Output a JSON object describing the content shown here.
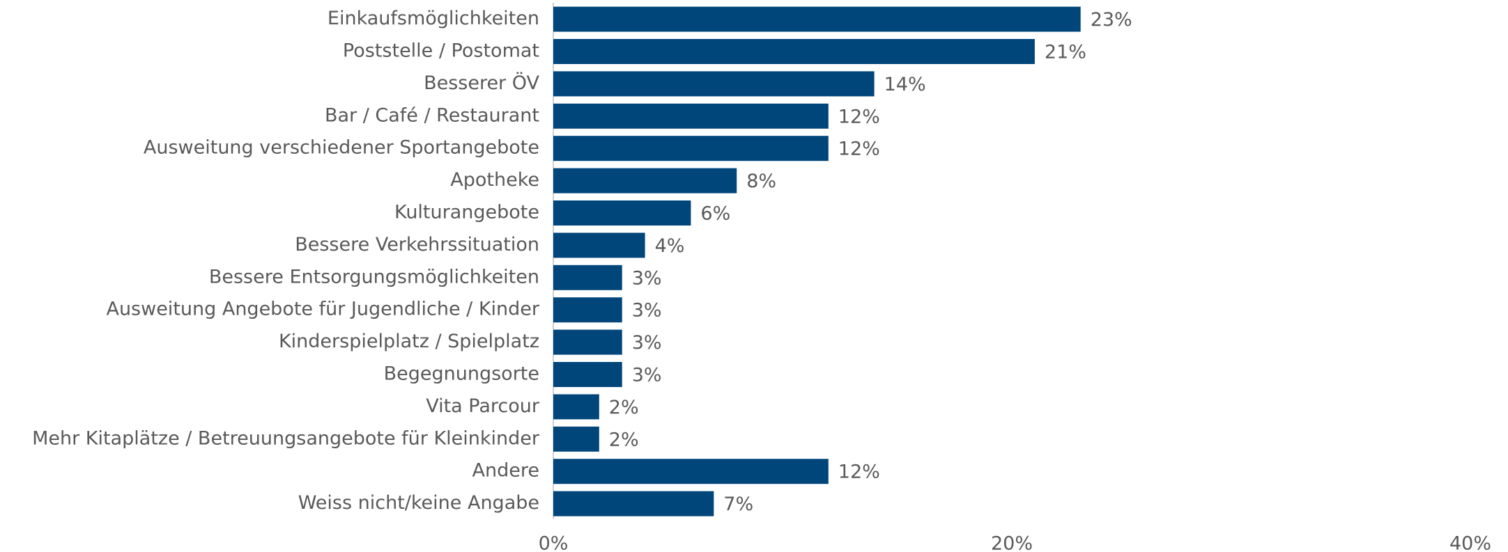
{
  "chart_data": {
    "type": "barh",
    "categories": [
      "Einkaufsmöglichkeiten",
      "Poststelle / Postomat",
      "Besserer ÖV",
      "Bar / Café / Restaurant",
      "Ausweitung verschiedener Sportangebote",
      "Apotheke",
      "Kulturangebote",
      "Bessere Verkehrssituation",
      "Bessere Entsorgungsmöglichkeiten",
      "Ausweitung Angebote für Jugendliche / Kinder",
      "Kinderspielplatz / Spielplatz",
      "Begegnungsorte",
      "Vita Parcour",
      "Mehr Kitaplätze / Betreuungsangebote für Kleinkinder",
      "Andere",
      "Weiss nicht/keine Angabe"
    ],
    "values": [
      23,
      21,
      14,
      12,
      12,
      8,
      6,
      4,
      3,
      3,
      3,
      3,
      2,
      2,
      12,
      7
    ],
    "value_labels": [
      "23%",
      "21%",
      "14%",
      "12%",
      "12%",
      "8%",
      "6%",
      "4%",
      "3%",
      "3%",
      "3%",
      "3%",
      "2%",
      "2%",
      "12%",
      "7%"
    ],
    "color": "#00467b",
    "xlim": [
      0,
      40
    ],
    "xticks": [
      {
        "value": 0,
        "label": "0%"
      },
      {
        "value": 20,
        "label": "20%"
      },
      {
        "value": 40,
        "label": "40%"
      }
    ]
  }
}
